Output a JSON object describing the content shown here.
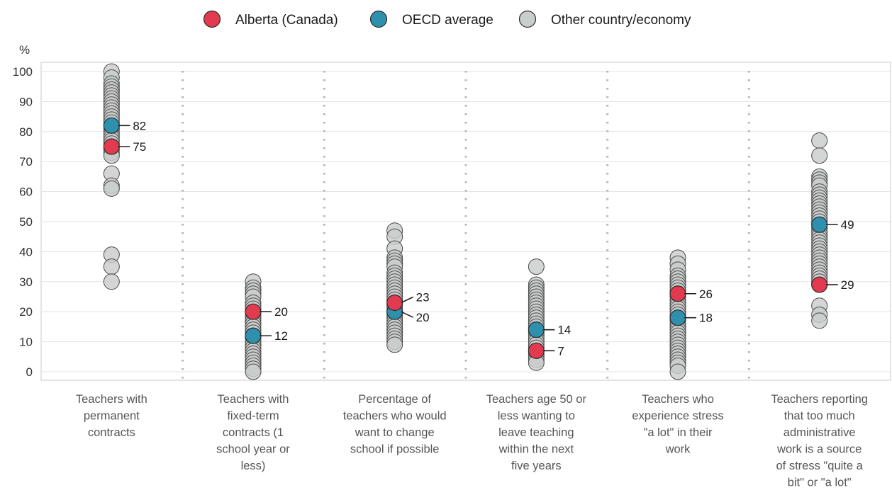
{
  "chart_data": {
    "type": "scatter",
    "ylabel": "%",
    "ylim": [
      0,
      100
    ],
    "yticks": [
      0,
      10,
      20,
      30,
      40,
      50,
      60,
      70,
      80,
      90,
      100
    ],
    "grid": true,
    "legend_position": "top",
    "legend": [
      {
        "key": "alberta",
        "label": "Alberta (Canada)"
      },
      {
        "key": "oecd",
        "label": "OECD average"
      },
      {
        "key": "other",
        "label": "Other country/economy"
      }
    ],
    "categories": [
      {
        "label_lines": [
          "Teachers with",
          "permanent",
          "contracts"
        ],
        "alberta": 75,
        "oecd": 82,
        "others": [
          100,
          98,
          96,
          95,
          94,
          93,
          92,
          91,
          90,
          89,
          88,
          87,
          86,
          85,
          84,
          83,
          81,
          80,
          79,
          78,
          77,
          76,
          74,
          73,
          72,
          66,
          62,
          61,
          39,
          35,
          30
        ]
      },
      {
        "label_lines": [
          "Teachers with",
          "fixed-term",
          "contracts (1",
          "school year or",
          "less)"
        ],
        "alberta": 20,
        "oecd": 12,
        "others": [
          30,
          28,
          27,
          26,
          25,
          23,
          22,
          21,
          19,
          18,
          17,
          16,
          15,
          14,
          13,
          11,
          10,
          9,
          8,
          7,
          6,
          5,
          4,
          3,
          2,
          1,
          0
        ]
      },
      {
        "label_lines": [
          "Percentage of",
          "teachers who would",
          "want to change",
          "school if possible"
        ],
        "alberta": 23,
        "oecd": 20,
        "others": [
          47,
          45,
          41,
          38,
          37,
          36,
          35,
          33,
          32,
          31,
          30,
          29,
          28,
          27,
          26,
          25,
          24,
          22,
          21,
          19,
          18,
          17,
          16,
          15,
          14,
          13,
          12,
          11,
          10,
          9
        ]
      },
      {
        "label_lines": [
          "Teachers age 50 or",
          "less wanting to",
          "leave teaching",
          "within the next",
          "five years"
        ],
        "alberta": 7,
        "oecd": 14,
        "others": [
          35,
          29,
          28,
          27,
          26,
          25,
          24,
          23,
          22,
          21,
          20,
          19,
          18,
          17,
          16,
          15,
          13,
          12,
          11,
          10,
          9,
          8,
          6,
          5,
          4,
          3
        ]
      },
      {
        "label_lines": [
          "Teachers who",
          "experience stress",
          "\"a lot\" in their",
          "work"
        ],
        "alberta": 26,
        "oecd": 18,
        "others": [
          38,
          36,
          34,
          32,
          31,
          30,
          29,
          28,
          27,
          25,
          24,
          23,
          22,
          21,
          20,
          19,
          17,
          16,
          15,
          14,
          13,
          12,
          11,
          10,
          9,
          8,
          7,
          6,
          5,
          4,
          3,
          2,
          0
        ]
      },
      {
        "label_lines": [
          "Teachers reporting",
          "that too much",
          "administrative",
          "work is a source",
          "of stress \"quite a",
          "bit\" or \"a lot\""
        ],
        "alberta": 29,
        "oecd": 49,
        "others": [
          77,
          72,
          65,
          64,
          63,
          62,
          60,
          59,
          58,
          57,
          56,
          55,
          54,
          53,
          52,
          51,
          50,
          48,
          47,
          46,
          45,
          44,
          43,
          42,
          41,
          40,
          39,
          38,
          37,
          36,
          35,
          34,
          33,
          32,
          31,
          30,
          22,
          19,
          17
        ]
      }
    ],
    "colors": {
      "alberta": "#e23a4e",
      "oecd": "#2e90ad",
      "other": "#c9cdcc",
      "other_stroke": "#4a4a4a",
      "grid": "#e3e3e3",
      "separator": "#b5b5b5",
      "axis": "#c8c8c8"
    }
  }
}
